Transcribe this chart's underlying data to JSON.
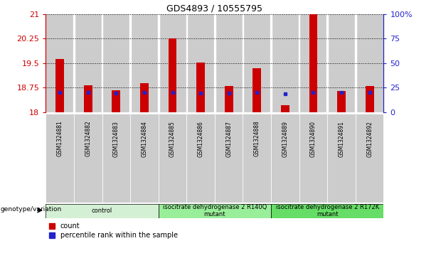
{
  "title": "GDS4893 / 10555795",
  "samples": [
    "GSM1324881",
    "GSM1324882",
    "GSM1324883",
    "GSM1324884",
    "GSM1324885",
    "GSM1324886",
    "GSM1324887",
    "GSM1324888",
    "GSM1324889",
    "GSM1324890",
    "GSM1324891",
    "GSM1324892"
  ],
  "count_values": [
    19.62,
    18.82,
    18.68,
    18.9,
    20.25,
    19.52,
    18.8,
    19.35,
    18.22,
    21.0,
    18.65,
    18.8
  ],
  "percentile_values": [
    18.6,
    18.6,
    18.59,
    18.6,
    18.6,
    18.59,
    18.58,
    18.6,
    18.57,
    18.6,
    18.6,
    18.6
  ],
  "ymin": 18.0,
  "ymax": 21.0,
  "yticks_left": [
    18.0,
    18.75,
    19.5,
    20.25,
    21.0
  ],
  "yticklabels_left": [
    "18",
    "18.75",
    "19.5",
    "20.25",
    "21"
  ],
  "yticks_right": [
    18.0,
    18.75,
    19.5,
    20.25,
    21.0
  ],
  "yticklabels_right": [
    "0",
    "25",
    "50",
    "75",
    "100%"
  ],
  "bar_color": "#cc0000",
  "percentile_color": "#2222cc",
  "bar_width": 0.3,
  "groups": [
    {
      "label": "control",
      "start": 0,
      "end": 3,
      "color": "#d4f0d4"
    },
    {
      "label": "isocitrate dehydrogenase 2 R140Q\nmutant",
      "start": 4,
      "end": 7,
      "color": "#99ee99"
    },
    {
      "label": "isocitrate dehydrogenase 2 R172K\nmutant",
      "start": 8,
      "end": 11,
      "color": "#66dd66"
    }
  ],
  "xlabel_label": "genotype/variation",
  "legend_count": "count",
  "legend_percentile": "percentile rank within the sample",
  "col_bg_color": "#cccccc",
  "plot_bg_color": "#ffffff",
  "left_tick_color": "#cc0000",
  "right_tick_color": "#2222cc",
  "title_fontsize": 9
}
